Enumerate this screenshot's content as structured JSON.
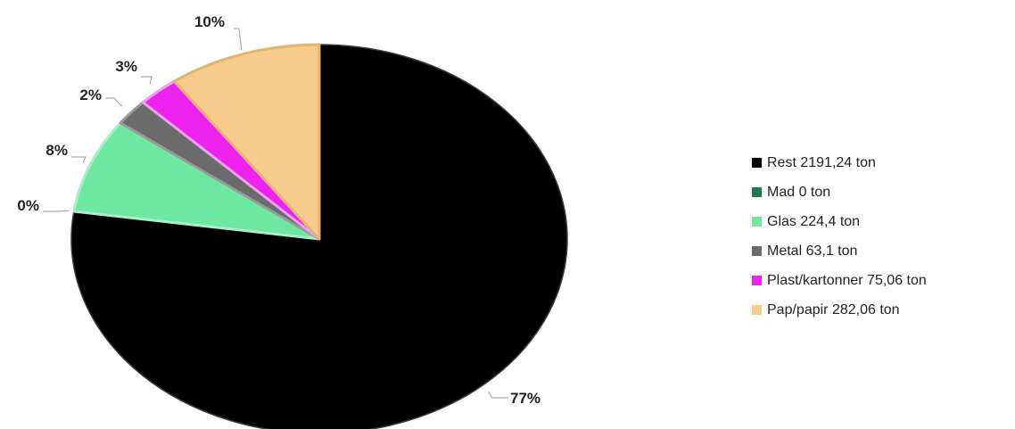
{
  "chart_data": {
    "type": "pie",
    "title": "",
    "legend_position": "right",
    "slices": [
      {
        "name": "Rest 2191,24 ton",
        "value": 2191.24,
        "label": "77%",
        "color": "#000000",
        "edge": "#3a3a3a"
      },
      {
        "name": "Mad 0 ton",
        "value": 0,
        "label": "0%",
        "color": "#1a7a4a",
        "edge": "#1a7a4a"
      },
      {
        "name": "Glas 224,4 ton",
        "value": 224.4,
        "label": "8%",
        "color": "#6ee8a0",
        "edge": "#a6f0c6"
      },
      {
        "name": "Metal 63,1 ton",
        "value": 63.1,
        "label": "2%",
        "color": "#6b6b6b",
        "edge": "#9a9a9a"
      },
      {
        "name": "Plast/kartonner 75,06 ton",
        "value": 75.06,
        "label": "3%",
        "color": "#ee22ee",
        "edge": "#f39af3"
      },
      {
        "name": "Pap/papir 282,06 ton",
        "value": 282.06,
        "label": "10%",
        "color": "#f7cc8a",
        "edge": "#e0b66e"
      }
    ]
  }
}
